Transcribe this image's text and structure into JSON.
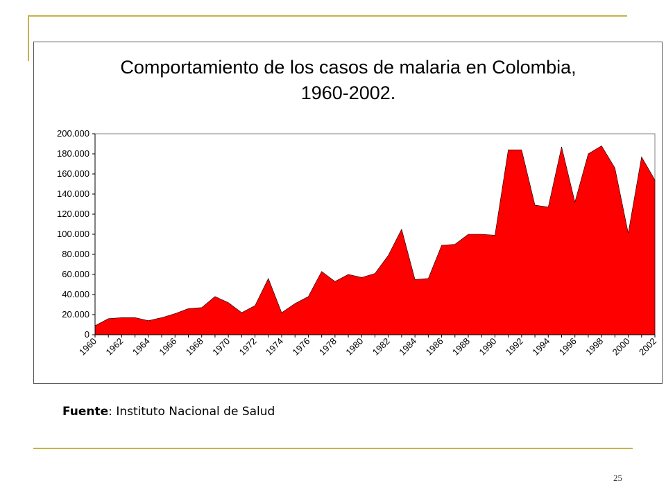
{
  "colors": {
    "rule": "#c8b14a",
    "area_fill": "#ff0000",
    "area_stroke": "#000000"
  },
  "source": {
    "label": "Fuente",
    "separator": ":",
    "text": "Instituto Nacional de Salud"
  },
  "page_number": "25",
  "chart_data": {
    "type": "area",
    "title_lines": [
      "Comportamiento de los casos de malaria en Colombia,",
      "1960-2002."
    ],
    "xlabel": "",
    "ylabel": "",
    "ylim": [
      0,
      200000
    ],
    "y_ticks": [
      0,
      20000,
      40000,
      60000,
      80000,
      100000,
      120000,
      140000,
      160000,
      180000,
      200000
    ],
    "y_tick_labels": [
      "0",
      "20.000",
      "40.000",
      "60.000",
      "80.000",
      "100.000",
      "120.000",
      "140.000",
      "160.000",
      "180.000",
      "200.000"
    ],
    "x_tick_labels": [
      "1960",
      "1962",
      "1964",
      "1966",
      "1968",
      "1970",
      "1972",
      "1974",
      "1976",
      "1978",
      "1980",
      "1982",
      "1984",
      "1986",
      "1988",
      "1990",
      "1992",
      "1994",
      "1996",
      "1998",
      "2000",
      "2002"
    ],
    "grid": false,
    "legend": "none",
    "x": [
      1960,
      1961,
      1962,
      1963,
      1964,
      1965,
      1966,
      1967,
      1968,
      1969,
      1970,
      1971,
      1972,
      1973,
      1974,
      1975,
      1976,
      1977,
      1978,
      1979,
      1980,
      1981,
      1982,
      1983,
      1984,
      1985,
      1986,
      1987,
      1988,
      1989,
      1990,
      1991,
      1992,
      1993,
      1994,
      1995,
      1996,
      1997,
      1998,
      1999,
      2000,
      2001,
      2002
    ],
    "series": [
      {
        "values": [
          9000,
          16000,
          17000,
          17000,
          14000,
          17000,
          21000,
          26000,
          27000,
          38000,
          32000,
          22000,
          29000,
          56000,
          22000,
          31000,
          38000,
          63000,
          53000,
          60000,
          57000,
          61000,
          79000,
          105000,
          55000,
          56000,
          89000,
          90000,
          100000,
          100000,
          99000,
          184000,
          184000,
          129000,
          127000,
          187000,
          132000,
          180000,
          188000,
          166000,
          101000,
          177000,
          154000
        ]
      }
    ]
  }
}
